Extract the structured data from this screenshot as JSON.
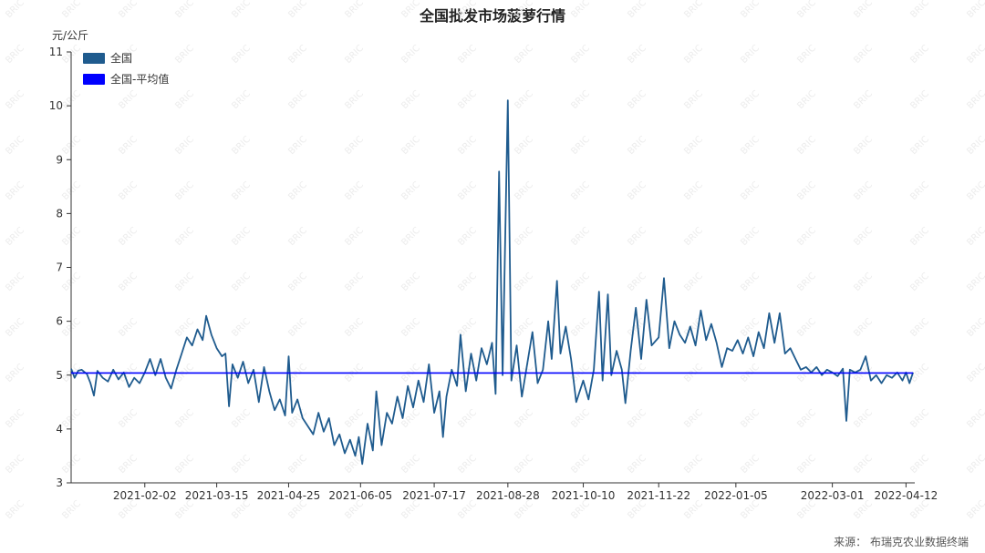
{
  "chart_data": {
    "type": "line",
    "title": "全国批发市场菠萝行情",
    "ylabel": "元/公斤",
    "ylim": [
      3,
      11
    ],
    "yticks": [
      3,
      4,
      5,
      6,
      7,
      8,
      9,
      10,
      11
    ],
    "xlim": [
      "2020-12-22",
      "2022-04-17"
    ],
    "xticks": [
      "2021-02-02",
      "2021-03-15",
      "2021-04-25",
      "2021-06-05",
      "2021-07-17",
      "2021-08-28",
      "2021-10-10",
      "2021-11-22",
      "2022-01-05",
      "2022-03-01",
      "2022-04-12"
    ],
    "legend_position": "top-left",
    "series": [
      {
        "name": "全国",
        "color": "#1f5b8e",
        "points": [
          [
            "2020-12-22",
            5.12
          ],
          [
            "2020-12-24",
            4.95
          ],
          [
            "2020-12-26",
            5.08
          ],
          [
            "2020-12-28",
            5.1
          ],
          [
            "2020-12-31",
            5.02
          ],
          [
            "2021-01-02",
            4.85
          ],
          [
            "2021-01-04",
            4.62
          ],
          [
            "2021-01-06",
            5.08
          ],
          [
            "2021-01-09",
            4.95
          ],
          [
            "2021-01-12",
            4.88
          ],
          [
            "2021-01-15",
            5.1
          ],
          [
            "2021-01-18",
            4.92
          ],
          [
            "2021-01-21",
            5.05
          ],
          [
            "2021-01-24",
            4.78
          ],
          [
            "2021-01-27",
            4.95
          ],
          [
            "2021-01-30",
            4.85
          ],
          [
            "2021-02-02",
            5.05
          ],
          [
            "2021-02-05",
            5.3
          ],
          [
            "2021-02-08",
            5.0
          ],
          [
            "2021-02-11",
            5.3
          ],
          [
            "2021-02-14",
            4.95
          ],
          [
            "2021-02-17",
            4.75
          ],
          [
            "2021-02-20",
            5.1
          ],
          [
            "2021-02-23",
            5.4
          ],
          [
            "2021-02-26",
            5.7
          ],
          [
            "2021-03-01",
            5.55
          ],
          [
            "2021-03-04",
            5.85
          ],
          [
            "2021-03-07",
            5.65
          ],
          [
            "2021-03-09",
            6.1
          ],
          [
            "2021-03-12",
            5.75
          ],
          [
            "2021-03-15",
            5.5
          ],
          [
            "2021-03-18",
            5.35
          ],
          [
            "2021-03-20",
            5.4
          ],
          [
            "2021-03-22",
            4.42
          ],
          [
            "2021-03-24",
            5.2
          ],
          [
            "2021-03-27",
            4.95
          ],
          [
            "2021-03-30",
            5.25
          ],
          [
            "2021-04-02",
            4.85
          ],
          [
            "2021-04-05",
            5.1
          ],
          [
            "2021-04-08",
            4.5
          ],
          [
            "2021-04-11",
            5.15
          ],
          [
            "2021-04-14",
            4.7
          ],
          [
            "2021-04-17",
            4.35
          ],
          [
            "2021-04-20",
            4.55
          ],
          [
            "2021-04-23",
            4.25
          ],
          [
            "2021-04-25",
            5.35
          ],
          [
            "2021-04-27",
            4.3
          ],
          [
            "2021-04-30",
            4.55
          ],
          [
            "2021-05-03",
            4.2
          ],
          [
            "2021-05-06",
            4.05
          ],
          [
            "2021-05-09",
            3.9
          ],
          [
            "2021-05-12",
            4.3
          ],
          [
            "2021-05-15",
            3.95
          ],
          [
            "2021-05-18",
            4.2
          ],
          [
            "2021-05-21",
            3.7
          ],
          [
            "2021-05-24",
            3.9
          ],
          [
            "2021-05-27",
            3.55
          ],
          [
            "2021-05-30",
            3.8
          ],
          [
            "2021-06-02",
            3.5
          ],
          [
            "2021-06-04",
            3.85
          ],
          [
            "2021-06-06",
            3.35
          ],
          [
            "2021-06-09",
            4.1
          ],
          [
            "2021-06-12",
            3.6
          ],
          [
            "2021-06-14",
            4.7
          ],
          [
            "2021-06-17",
            3.7
          ],
          [
            "2021-06-20",
            4.3
          ],
          [
            "2021-06-23",
            4.1
          ],
          [
            "2021-06-26",
            4.6
          ],
          [
            "2021-06-29",
            4.2
          ],
          [
            "2021-07-02",
            4.8
          ],
          [
            "2021-07-05",
            4.4
          ],
          [
            "2021-07-08",
            4.9
          ],
          [
            "2021-07-11",
            4.5
          ],
          [
            "2021-07-14",
            5.2
          ],
          [
            "2021-07-17",
            4.3
          ],
          [
            "2021-07-20",
            4.7
          ],
          [
            "2021-07-22",
            3.85
          ],
          [
            "2021-07-24",
            4.6
          ],
          [
            "2021-07-27",
            5.1
          ],
          [
            "2021-07-30",
            4.8
          ],
          [
            "2021-08-01",
            5.75
          ],
          [
            "2021-08-04",
            4.7
          ],
          [
            "2021-08-07",
            5.4
          ],
          [
            "2021-08-10",
            4.9
          ],
          [
            "2021-08-13",
            5.5
          ],
          [
            "2021-08-16",
            5.2
          ],
          [
            "2021-08-19",
            5.6
          ],
          [
            "2021-08-21",
            4.65
          ],
          [
            "2021-08-23",
            8.78
          ],
          [
            "2021-08-25",
            5.0
          ],
          [
            "2021-08-28",
            10.1
          ],
          [
            "2021-08-30",
            4.9
          ],
          [
            "2021-09-02",
            5.55
          ],
          [
            "2021-09-05",
            4.6
          ],
          [
            "2021-09-08",
            5.2
          ],
          [
            "2021-09-11",
            5.8
          ],
          [
            "2021-09-14",
            4.85
          ],
          [
            "2021-09-17",
            5.1
          ],
          [
            "2021-09-20",
            6.0
          ],
          [
            "2021-09-22",
            5.3
          ],
          [
            "2021-09-25",
            6.75
          ],
          [
            "2021-09-27",
            5.4
          ],
          [
            "2021-09-30",
            5.9
          ],
          [
            "2021-10-03",
            5.3
          ],
          [
            "2021-10-06",
            4.5
          ],
          [
            "2021-10-10",
            4.9
          ],
          [
            "2021-10-13",
            4.55
          ],
          [
            "2021-10-16",
            5.1
          ],
          [
            "2021-10-19",
            6.55
          ],
          [
            "2021-10-21",
            4.9
          ],
          [
            "2021-10-24",
            6.5
          ],
          [
            "2021-10-26",
            5.0
          ],
          [
            "2021-10-29",
            5.45
          ],
          [
            "2021-11-01",
            5.1
          ],
          [
            "2021-11-03",
            4.48
          ],
          [
            "2021-11-06",
            5.45
          ],
          [
            "2021-11-09",
            6.25
          ],
          [
            "2021-11-12",
            5.3
          ],
          [
            "2021-11-15",
            6.4
          ],
          [
            "2021-11-18",
            5.55
          ],
          [
            "2021-11-22",
            5.7
          ],
          [
            "2021-11-25",
            6.8
          ],
          [
            "2021-11-28",
            5.5
          ],
          [
            "2021-12-01",
            6.0
          ],
          [
            "2021-12-04",
            5.75
          ],
          [
            "2021-12-07",
            5.6
          ],
          [
            "2021-12-10",
            5.9
          ],
          [
            "2021-12-13",
            5.55
          ],
          [
            "2021-12-16",
            6.2
          ],
          [
            "2021-12-19",
            5.65
          ],
          [
            "2021-12-22",
            5.95
          ],
          [
            "2021-12-25",
            5.6
          ],
          [
            "2021-12-28",
            5.15
          ],
          [
            "2021-12-31",
            5.5
          ],
          [
            "2022-01-03",
            5.45
          ],
          [
            "2022-01-06",
            5.65
          ],
          [
            "2022-01-09",
            5.4
          ],
          [
            "2022-01-12",
            5.7
          ],
          [
            "2022-01-15",
            5.35
          ],
          [
            "2022-01-18",
            5.8
          ],
          [
            "2022-01-21",
            5.5
          ],
          [
            "2022-01-24",
            6.15
          ],
          [
            "2022-01-27",
            5.6
          ],
          [
            "2022-01-30",
            6.15
          ],
          [
            "2022-02-02",
            5.4
          ],
          [
            "2022-02-05",
            5.5
          ],
          [
            "2022-02-08",
            5.3
          ],
          [
            "2022-02-11",
            5.1
          ],
          [
            "2022-02-14",
            5.15
          ],
          [
            "2022-02-17",
            5.05
          ],
          [
            "2022-02-20",
            5.15
          ],
          [
            "2022-02-23",
            5.0
          ],
          [
            "2022-02-26",
            5.1
          ],
          [
            "2022-03-01",
            5.05
          ],
          [
            "2022-03-04",
            4.98
          ],
          [
            "2022-03-07",
            5.12
          ],
          [
            "2022-03-09",
            4.15
          ],
          [
            "2022-03-11",
            5.1
          ],
          [
            "2022-03-14",
            5.05
          ],
          [
            "2022-03-17",
            5.1
          ],
          [
            "2022-03-20",
            5.35
          ],
          [
            "2022-03-23",
            4.9
          ],
          [
            "2022-03-26",
            5.0
          ],
          [
            "2022-03-29",
            4.85
          ],
          [
            "2022-04-01",
            5.0
          ],
          [
            "2022-04-04",
            4.95
          ],
          [
            "2022-04-07",
            5.05
          ],
          [
            "2022-04-10",
            4.9
          ],
          [
            "2022-04-12",
            5.05
          ],
          [
            "2022-04-14",
            4.85
          ],
          [
            "2022-04-16",
            5.05
          ]
        ]
      },
      {
        "name": "全国-平均值",
        "color": "#0000ff",
        "points": [
          [
            "2020-12-22",
            5.04
          ],
          [
            "2022-04-16",
            5.04
          ]
        ]
      }
    ]
  },
  "footer": {
    "source": "来源：  布瑞克农业数据终端"
  },
  "watermark": {
    "text": "BRIC"
  }
}
